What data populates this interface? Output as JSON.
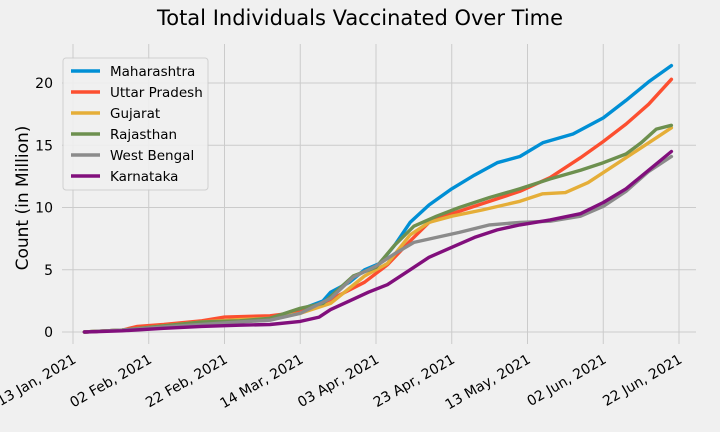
{
  "chart_data": {
    "type": "line",
    "title": "Total Individuals Vaccinated Over Time",
    "xlabel": "",
    "ylabel": "Count (in Million)",
    "x_range": [
      "2021-01-13",
      "2021-06-22"
    ],
    "ylim": [
      -0.9,
      22.4
    ],
    "x_ticks": [
      {
        "date": "2021-01-13",
        "label": "13 Jan, 2021"
      },
      {
        "date": "2021-02-02",
        "label": "02 Feb, 2021"
      },
      {
        "date": "2021-02-22",
        "label": "22 Feb, 2021"
      },
      {
        "date": "2021-03-14",
        "label": "14 Mar, 2021"
      },
      {
        "date": "2021-04-03",
        "label": "03 Apr, 2021"
      },
      {
        "date": "2021-04-23",
        "label": "23 Apr, 2021"
      },
      {
        "date": "2021-05-13",
        "label": "13 May, 2021"
      },
      {
        "date": "2021-06-02",
        "label": "02 Jun, 2021"
      },
      {
        "date": "2021-06-22",
        "label": "22 Jun, 2021"
      }
    ],
    "y_ticks": [
      0,
      5,
      10,
      15,
      20
    ],
    "grid": true,
    "legend": "top-left",
    "series": [
      {
        "name": "Maharashtra",
        "color": "#008fd5",
        "points": [
          [
            "2021-01-16",
            0.0
          ],
          [
            "2021-01-26",
            0.15
          ],
          [
            "2021-02-06",
            0.45
          ],
          [
            "2021-02-16",
            0.65
          ],
          [
            "2021-02-26",
            0.85
          ],
          [
            "2021-03-06",
            1.0
          ],
          [
            "2021-03-14",
            1.8
          ],
          [
            "2021-03-20",
            2.5
          ],
          [
            "2021-03-22",
            3.2
          ],
          [
            "2021-03-27",
            4.0
          ],
          [
            "2021-03-31",
            5.0
          ],
          [
            "2021-04-04",
            5.5
          ],
          [
            "2021-04-08",
            7.0
          ],
          [
            "2021-04-12",
            8.8
          ],
          [
            "2021-04-17",
            10.2
          ],
          [
            "2021-04-23",
            11.5
          ],
          [
            "2021-04-29",
            12.6
          ],
          [
            "2021-05-05",
            13.6
          ],
          [
            "2021-05-11",
            14.1
          ],
          [
            "2021-05-17",
            15.2
          ],
          [
            "2021-05-25",
            15.9
          ],
          [
            "2021-06-02",
            17.2
          ],
          [
            "2021-06-08",
            18.6
          ],
          [
            "2021-06-14",
            20.1
          ],
          [
            "2021-06-20",
            21.4
          ]
        ]
      },
      {
        "name": "Uttar Pradesh",
        "color": "#fc4f30",
        "points": [
          [
            "2021-01-16",
            0.0
          ],
          [
            "2021-01-26",
            0.15
          ],
          [
            "2021-01-30",
            0.45
          ],
          [
            "2021-02-06",
            0.6
          ],
          [
            "2021-02-16",
            0.9
          ],
          [
            "2021-02-22",
            1.2
          ],
          [
            "2021-03-06",
            1.3
          ],
          [
            "2021-03-14",
            1.6
          ],
          [
            "2021-03-22",
            2.6
          ],
          [
            "2021-03-31",
            4.0
          ],
          [
            "2021-04-06",
            5.4
          ],
          [
            "2021-04-12",
            7.3
          ],
          [
            "2021-04-17",
            8.8
          ],
          [
            "2021-04-23",
            9.5
          ],
          [
            "2021-05-01",
            10.3
          ],
          [
            "2021-05-11",
            11.3
          ],
          [
            "2021-05-19",
            12.4
          ],
          [
            "2021-05-27",
            14.0
          ],
          [
            "2021-06-02",
            15.3
          ],
          [
            "2021-06-08",
            16.7
          ],
          [
            "2021-06-14",
            18.3
          ],
          [
            "2021-06-20",
            20.3
          ]
        ]
      },
      {
        "name": "Gujarat",
        "color": "#e5ae38",
        "points": [
          [
            "2021-01-16",
            0.0
          ],
          [
            "2021-01-26",
            0.15
          ],
          [
            "2021-02-06",
            0.5
          ],
          [
            "2021-02-16",
            0.8
          ],
          [
            "2021-02-26",
            1.0
          ],
          [
            "2021-03-06",
            1.1
          ],
          [
            "2021-03-14",
            1.5
          ],
          [
            "2021-03-22",
            2.3
          ],
          [
            "2021-03-31",
            4.5
          ],
          [
            "2021-04-06",
            5.5
          ],
          [
            "2021-04-12",
            7.8
          ],
          [
            "2021-04-17",
            8.8
          ],
          [
            "2021-04-23",
            9.3
          ],
          [
            "2021-05-01",
            9.8
          ],
          [
            "2021-05-11",
            10.5
          ],
          [
            "2021-05-17",
            11.1
          ],
          [
            "2021-05-23",
            11.2
          ],
          [
            "2021-05-29",
            12.0
          ],
          [
            "2021-06-04",
            13.2
          ],
          [
            "2021-06-10",
            14.4
          ],
          [
            "2021-06-16",
            15.6
          ],
          [
            "2021-06-20",
            16.4
          ]
        ]
      },
      {
        "name": "Rajasthan",
        "color": "#6d904f",
        "points": [
          [
            "2021-01-16",
            0.0
          ],
          [
            "2021-01-26",
            0.15
          ],
          [
            "2021-02-06",
            0.5
          ],
          [
            "2021-02-16",
            0.8
          ],
          [
            "2021-02-26",
            0.9
          ],
          [
            "2021-03-06",
            1.1
          ],
          [
            "2021-03-14",
            1.9
          ],
          [
            "2021-03-20",
            2.3
          ],
          [
            "2021-03-28",
            4.5
          ],
          [
            "2021-04-03",
            5.2
          ],
          [
            "2021-04-08",
            7.0
          ],
          [
            "2021-04-13",
            8.5
          ],
          [
            "2021-04-19",
            9.3
          ],
          [
            "2021-04-25",
            10.0
          ],
          [
            "2021-05-03",
            10.8
          ],
          [
            "2021-05-11",
            11.5
          ],
          [
            "2021-05-19",
            12.3
          ],
          [
            "2021-05-27",
            13.0
          ],
          [
            "2021-06-02",
            13.6
          ],
          [
            "2021-06-08",
            14.3
          ],
          [
            "2021-06-12",
            15.2
          ],
          [
            "2021-06-16",
            16.3
          ],
          [
            "2021-06-20",
            16.6
          ]
        ]
      },
      {
        "name": "West Bengal",
        "color": "#8b8b8b",
        "points": [
          [
            "2021-01-16",
            0.0
          ],
          [
            "2021-01-26",
            0.15
          ],
          [
            "2021-02-06",
            0.4
          ],
          [
            "2021-02-16",
            0.6
          ],
          [
            "2021-02-26",
            0.8
          ],
          [
            "2021-03-06",
            0.95
          ],
          [
            "2021-03-14",
            1.5
          ],
          [
            "2021-03-22",
            2.7
          ],
          [
            "2021-03-28",
            4.4
          ],
          [
            "2021-04-03",
            5.3
          ],
          [
            "2021-04-08",
            6.3
          ],
          [
            "2021-04-13",
            7.2
          ],
          [
            "2021-04-19",
            7.6
          ],
          [
            "2021-04-25",
            8.0
          ],
          [
            "2021-05-03",
            8.6
          ],
          [
            "2021-05-11",
            8.8
          ],
          [
            "2021-05-19",
            8.9
          ],
          [
            "2021-05-27",
            9.3
          ],
          [
            "2021-06-02",
            10.1
          ],
          [
            "2021-06-08",
            11.3
          ],
          [
            "2021-06-14",
            12.9
          ],
          [
            "2021-06-20",
            14.1
          ]
        ]
      },
      {
        "name": "Karnataka",
        "color": "#810f7c",
        "points": [
          [
            "2021-01-16",
            0.0
          ],
          [
            "2021-01-26",
            0.1
          ],
          [
            "2021-02-06",
            0.3
          ],
          [
            "2021-02-16",
            0.45
          ],
          [
            "2021-02-26",
            0.55
          ],
          [
            "2021-03-06",
            0.6
          ],
          [
            "2021-03-14",
            0.85
          ],
          [
            "2021-03-19",
            1.2
          ],
          [
            "2021-03-22",
            1.8
          ],
          [
            "2021-03-27",
            2.5
          ],
          [
            "2021-04-01",
            3.2
          ],
          [
            "2021-04-06",
            3.8
          ],
          [
            "2021-04-12",
            5.0
          ],
          [
            "2021-04-17",
            6.0
          ],
          [
            "2021-04-23",
            6.8
          ],
          [
            "2021-04-29",
            7.6
          ],
          [
            "2021-05-05",
            8.2
          ],
          [
            "2021-05-11",
            8.6
          ],
          [
            "2021-05-19",
            9.0
          ],
          [
            "2021-05-27",
            9.5
          ],
          [
            "2021-06-02",
            10.4
          ],
          [
            "2021-06-08",
            11.5
          ],
          [
            "2021-06-14",
            13.0
          ],
          [
            "2021-06-20",
            14.5
          ]
        ]
      }
    ]
  }
}
